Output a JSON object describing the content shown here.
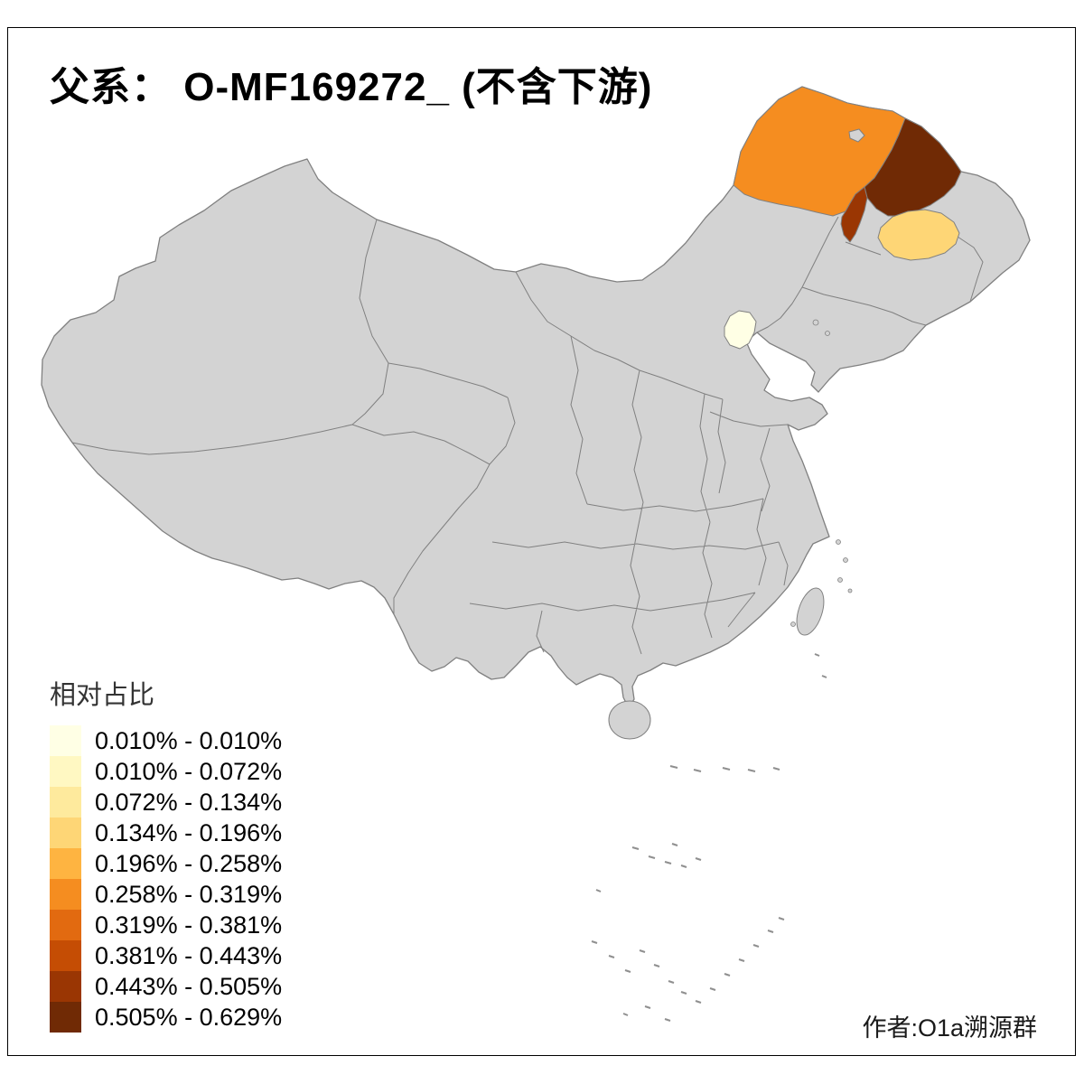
{
  "title": "父系： O-MF169272_ (不含下游)",
  "credit": "作者:O1a溯源群",
  "legend": {
    "title": "相对占比",
    "classes": [
      {
        "label": "0.010% - 0.010%",
        "color": "#FFFFE5"
      },
      {
        "label": "0.010% - 0.072%",
        "color": "#FFF8C2"
      },
      {
        "label": "0.072% - 0.134%",
        "color": "#FEEA9D"
      },
      {
        "label": "0.134% - 0.196%",
        "color": "#FED676"
      },
      {
        "label": "0.196% - 0.258%",
        "color": "#FEB441"
      },
      {
        "label": "0.258% - 0.319%",
        "color": "#F58D20"
      },
      {
        "label": "0.319% - 0.381%",
        "color": "#E26A10"
      },
      {
        "label": "0.381% - 0.443%",
        "color": "#C54D04"
      },
      {
        "label": "0.443% - 0.505%",
        "color": "#9A3603"
      },
      {
        "label": "0.505% - 0.629%",
        "color": "#702A05"
      }
    ]
  },
  "map": {
    "land_fill": "#D3D3D3",
    "border_color": "#808080",
    "regions": [
      {
        "name": "large-orange-region-northeast",
        "class_index": 5
      },
      {
        "name": "dark-brown-region-northeast",
        "class_index": 9
      },
      {
        "name": "dark-red-strip-northeast",
        "class_index": 8
      },
      {
        "name": "tan-region-northeast",
        "class_index": 3
      },
      {
        "name": "pale-region-beijing",
        "class_index": 0
      }
    ]
  }
}
